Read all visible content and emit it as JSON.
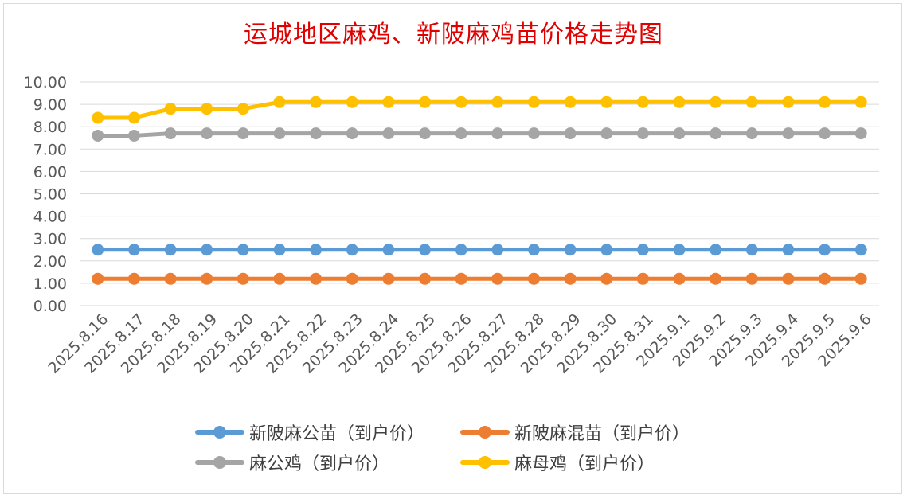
{
  "chart_data": {
    "type": "line",
    "title": "运城地区麻鸡、新陂麻鸡苗价格走势图",
    "categories": [
      "2025.8.16",
      "2025.8.17",
      "2025.8.18",
      "2025.8.19",
      "2025.8.20",
      "2025.8.21",
      "2025.8.22",
      "2025.8.23",
      "2025.8.24",
      "2025.8.25",
      "2025.8.26",
      "2025.8.27",
      "2025.8.28",
      "2025.8.29",
      "2025.8.30",
      "2025.8.31",
      "2025.9.1",
      "2025.9.2",
      "2025.9.3",
      "2025.9.4",
      "2025.9.5",
      "2025.9.6"
    ],
    "yticks": [
      "0.00",
      "1.00",
      "2.00",
      "3.00",
      "4.00",
      "5.00",
      "6.00",
      "7.00",
      "8.00",
      "9.00",
      "10.00"
    ],
    "ylim": [
      0,
      10
    ],
    "grid": true,
    "legend_position": "bottom",
    "series": [
      {
        "name": "新陂麻公苗（到户价）",
        "color": "#5b9bd5",
        "values": [
          2.5,
          2.5,
          2.5,
          2.5,
          2.5,
          2.5,
          2.5,
          2.5,
          2.5,
          2.5,
          2.5,
          2.5,
          2.5,
          2.5,
          2.5,
          2.5,
          2.5,
          2.5,
          2.5,
          2.5,
          2.5,
          2.5
        ]
      },
      {
        "name": "新陂麻混苗（到户价）",
        "color": "#ed7d31",
        "values": [
          1.2,
          1.2,
          1.2,
          1.2,
          1.2,
          1.2,
          1.2,
          1.2,
          1.2,
          1.2,
          1.2,
          1.2,
          1.2,
          1.2,
          1.2,
          1.2,
          1.2,
          1.2,
          1.2,
          1.2,
          1.2,
          1.2
        ]
      },
      {
        "name": "麻公鸡（到户价）",
        "color": "#a5a5a5",
        "values": [
          7.6,
          7.6,
          7.7,
          7.7,
          7.7,
          7.7,
          7.7,
          7.7,
          7.7,
          7.7,
          7.7,
          7.7,
          7.7,
          7.7,
          7.7,
          7.7,
          7.7,
          7.7,
          7.7,
          7.7,
          7.7,
          7.7
        ]
      },
      {
        "name": "麻母鸡（到户价）",
        "color": "#ffc000",
        "values": [
          8.4,
          8.4,
          8.8,
          8.8,
          8.8,
          9.1,
          9.1,
          9.1,
          9.1,
          9.1,
          9.1,
          9.1,
          9.1,
          9.1,
          9.1,
          9.1,
          9.1,
          9.1,
          9.1,
          9.1,
          9.1,
          9.1
        ]
      }
    ]
  }
}
